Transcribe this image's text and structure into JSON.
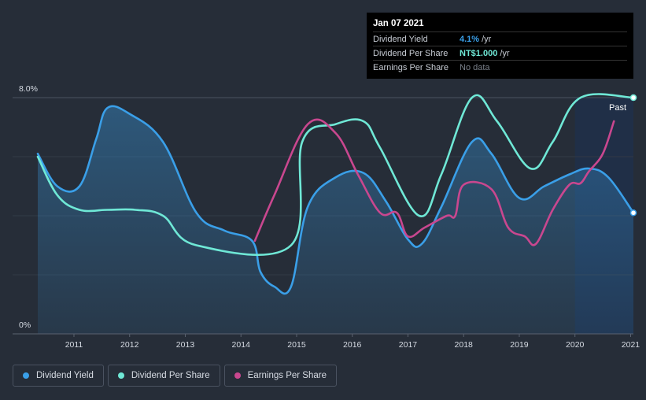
{
  "tooltip": {
    "date": "Jan 07 2021",
    "rows": [
      {
        "label": "Dividend Yield",
        "value": "4.1%",
        "unit": "/yr",
        "color": "#3a9fe8"
      },
      {
        "label": "Dividend Per Share",
        "value": "NT$1.000",
        "unit": "/yr",
        "color": "#6fe8d6"
      },
      {
        "label": "Earnings Per Share",
        "value": "No data",
        "unit": "",
        "color": "#7a808a"
      }
    ]
  },
  "legend": [
    {
      "label": "Dividend Yield",
      "color": "#3a9fe8"
    },
    {
      "label": "Dividend Per Share",
      "color": "#6fe8d6"
    },
    {
      "label": "Earnings Per Share",
      "color": "#c9478f"
    }
  ],
  "chart_data": {
    "type": "line",
    "xlim": [
      2010.35,
      2021.05
    ],
    "ylim": [
      0,
      8
    ],
    "y_tick_labels": [
      {
        "value": 8,
        "label": "8.0%"
      },
      {
        "value": 0,
        "label": "0%"
      }
    ],
    "x_ticks": [
      2011,
      2012,
      2013,
      2014,
      2015,
      2016,
      2017,
      2018,
      2019,
      2020,
      2021
    ],
    "x_tick_labels": [
      "2011",
      "2012",
      "2013",
      "2014",
      "2015",
      "2016",
      "2017",
      "2018",
      "2019",
      "2020",
      "2021"
    ],
    "past_label": "Past",
    "past_region_start": 2020.0,
    "series": [
      {
        "name": "Dividend Yield",
        "color": "#3a9fe8",
        "fill": true,
        "points": [
          [
            2010.35,
            6.1
          ],
          [
            2010.7,
            5.0
          ],
          [
            2011.1,
            5.0
          ],
          [
            2011.4,
            6.6
          ],
          [
            2011.6,
            7.65
          ],
          [
            2012.0,
            7.45
          ],
          [
            2012.6,
            6.5
          ],
          [
            2013.2,
            4.1
          ],
          [
            2013.7,
            3.5
          ],
          [
            2014.2,
            3.15
          ],
          [
            2014.35,
            2.1
          ],
          [
            2014.6,
            1.6
          ],
          [
            2014.9,
            1.6
          ],
          [
            2015.2,
            4.3
          ],
          [
            2015.7,
            5.3
          ],
          [
            2016.2,
            5.45
          ],
          [
            2016.6,
            4.5
          ],
          [
            2017.0,
            3.2
          ],
          [
            2017.25,
            3.05
          ],
          [
            2017.6,
            4.3
          ],
          [
            2018.15,
            6.5
          ],
          [
            2018.5,
            6.1
          ],
          [
            2019.0,
            4.6
          ],
          [
            2019.45,
            5.0
          ],
          [
            2019.9,
            5.4
          ],
          [
            2020.25,
            5.6
          ],
          [
            2020.6,
            5.3
          ],
          [
            2021.05,
            4.1
          ]
        ]
      },
      {
        "name": "Dividend Per Share",
        "color": "#6fe8d6",
        "fill": false,
        "points": [
          [
            2010.35,
            6.0
          ],
          [
            2010.7,
            4.7
          ],
          [
            2011.1,
            4.2
          ],
          [
            2011.6,
            4.2
          ],
          [
            2012.1,
            4.2
          ],
          [
            2012.6,
            4.0
          ],
          [
            2013.2,
            3.0
          ],
          [
            2014.9,
            3.0
          ],
          [
            2015.1,
            6.5
          ],
          [
            2015.7,
            7.1
          ],
          [
            2016.2,
            7.2
          ],
          [
            2016.5,
            6.3
          ],
          [
            2017.2,
            4.0
          ],
          [
            2017.6,
            5.4
          ],
          [
            2018.15,
            8.0
          ],
          [
            2018.6,
            7.2
          ],
          [
            2019.2,
            5.6
          ],
          [
            2019.6,
            6.5
          ],
          [
            2020.1,
            8.0
          ],
          [
            2021.05,
            8.0
          ]
        ]
      },
      {
        "name": "Earnings Per Share",
        "color": "#c9478f",
        "fill": false,
        "points": [
          [
            2014.25,
            3.15
          ],
          [
            2014.6,
            4.7
          ],
          [
            2015.2,
            7.1
          ],
          [
            2015.7,
            6.8
          ],
          [
            2016.1,
            5.4
          ],
          [
            2016.5,
            4.1
          ],
          [
            2016.8,
            4.1
          ],
          [
            2017.0,
            3.3
          ],
          [
            2017.3,
            3.6
          ],
          [
            2017.7,
            4.0
          ],
          [
            2017.85,
            4.0
          ],
          [
            2018.0,
            5.05
          ],
          [
            2018.5,
            4.9
          ],
          [
            2018.8,
            3.6
          ],
          [
            2019.1,
            3.3
          ],
          [
            2019.3,
            3.05
          ],
          [
            2019.6,
            4.2
          ],
          [
            2019.9,
            5.05
          ],
          [
            2020.1,
            5.1
          ],
          [
            2020.25,
            5.5
          ],
          [
            2020.5,
            6.1
          ],
          [
            2020.7,
            7.2
          ]
        ]
      }
    ]
  }
}
